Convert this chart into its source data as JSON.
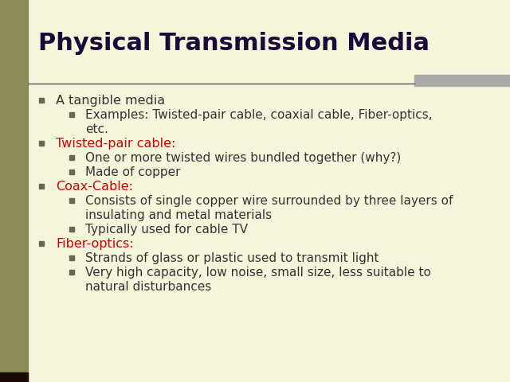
{
  "title": "Physical Transmission Media",
  "title_color": "#1a0a3a",
  "title_fontsize": 22,
  "background_color": "#f5f5dc",
  "left_bar_color": "#8b8b5a",
  "left_bar_dark_color": "#1a0a04",
  "separator_color": "#555555",
  "right_rect_color": "#aaaaaa",
  "bullet_color": "#666655",
  "red_color": "#cc0000",
  "black_color": "#333333",
  "line_configs": [
    {
      "level": 1,
      "lines": [
        "A tangible media"
      ],
      "color": "black"
    },
    {
      "level": 2,
      "lines": [
        "Examples: Twisted-pair cable, coaxial cable, Fiber-optics,",
        "etc."
      ],
      "color": "black"
    },
    {
      "level": 1,
      "lines": [
        "Twisted-pair cable:"
      ],
      "color": "red"
    },
    {
      "level": 2,
      "lines": [
        "One or more twisted wires bundled together (why?)"
      ],
      "color": "black"
    },
    {
      "level": 2,
      "lines": [
        "Made of copper"
      ],
      "color": "black"
    },
    {
      "level": 1,
      "lines": [
        "Coax-Cable:"
      ],
      "color": "red"
    },
    {
      "level": 2,
      "lines": [
        "Consists of single copper wire surrounded by three layers of",
        "insulating and metal materials"
      ],
      "color": "black"
    },
    {
      "level": 2,
      "lines": [
        "Typically used for cable TV"
      ],
      "color": "black"
    },
    {
      "level": 1,
      "lines": [
        "Fiber-optics:"
      ],
      "color": "red"
    },
    {
      "level": 2,
      "lines": [
        "Strands of glass or plastic used to transmit light"
      ],
      "color": "black"
    },
    {
      "level": 2,
      "lines": [
        "Very high capacity, low noise, small size, less suitable to",
        "natural disturbances"
      ],
      "color": "black"
    }
  ]
}
